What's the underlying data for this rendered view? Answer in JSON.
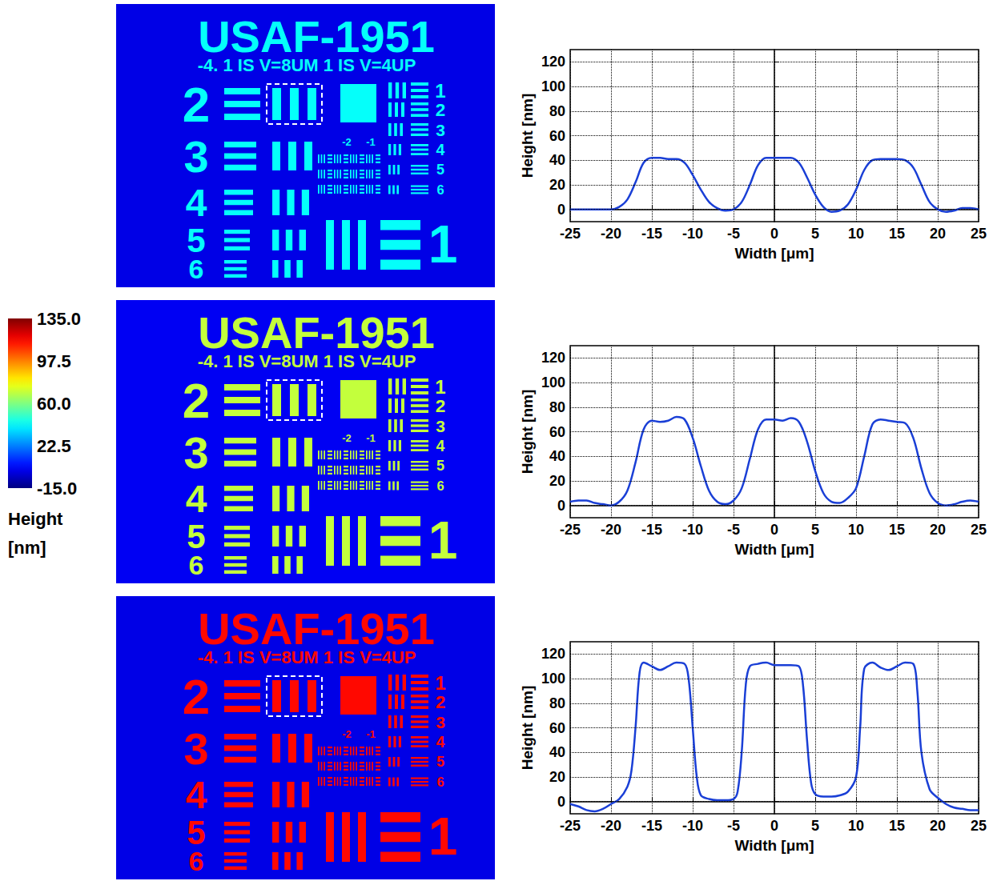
{
  "chart_data": [
    {
      "type": "line",
      "x_label": "Width [μm]",
      "y_label": "Height [nm]",
      "xlim": [
        -25,
        25
      ],
      "xticks": [
        -25,
        -20,
        -15,
        -10,
        -5,
        0,
        5,
        10,
        15,
        20,
        25
      ],
      "ylim": [
        -10,
        130
      ],
      "yticks": [
        0,
        20,
        40,
        60,
        80,
        100,
        120
      ],
      "grid": true,
      "series": [
        {
          "color": "#1a3fd6",
          "line_style": "solid",
          "x": [
            -25,
            -24,
            -23,
            -22,
            -21,
            -20,
            -19,
            -18,
            -17,
            -16,
            -15,
            -14,
            -13,
            -12,
            -11,
            -10,
            -9,
            -8,
            -7,
            -6,
            -5,
            -4,
            -3,
            -2,
            -1,
            0,
            1,
            2,
            3,
            4,
            5,
            6,
            7,
            8,
            9,
            10,
            11,
            12,
            13,
            14,
            15,
            16,
            17,
            18,
            19,
            20,
            21,
            22,
            23,
            24,
            25
          ],
          "values": [
            0,
            0,
            0,
            0,
            0,
            0,
            2,
            8,
            22,
            38,
            42,
            42,
            41,
            41,
            38,
            28,
            16,
            6,
            1,
            -1,
            0,
            6,
            20,
            36,
            42,
            42,
            42,
            42,
            38,
            26,
            12,
            2,
            -2,
            -1,
            4,
            16,
            32,
            40,
            41,
            41,
            41,
            40,
            34,
            20,
            6,
            0,
            -2,
            -1,
            1,
            1,
            0
          ]
        }
      ]
    },
    {
      "type": "line",
      "x_label": "Width [μm]",
      "y_label": "Height [nm]",
      "xlim": [
        -25,
        25
      ],
      "xticks": [
        -25,
        -20,
        -15,
        -10,
        -5,
        0,
        5,
        10,
        15,
        20,
        25
      ],
      "ylim": [
        -10,
        130
      ],
      "yticks": [
        0,
        20,
        40,
        60,
        80,
        100,
        120
      ],
      "grid": true,
      "series": [
        {
          "color": "#1a3fd6",
          "line_style": "solid",
          "x": [
            -25,
            -24,
            -23,
            -22,
            -21,
            -20,
            -19,
            -18,
            -17,
            -16,
            -15,
            -14,
            -13,
            -12,
            -11,
            -10,
            -9,
            -8,
            -7,
            -6,
            -5,
            -4,
            -3,
            -2,
            -1,
            0,
            1,
            2,
            3,
            4,
            5,
            6,
            7,
            8,
            9,
            10,
            11,
            12,
            13,
            14,
            15,
            16,
            17,
            18,
            19,
            20,
            21,
            22,
            23,
            24,
            25
          ],
          "values": [
            3,
            4,
            4,
            2,
            1,
            0,
            3,
            12,
            35,
            62,
            69,
            68,
            69,
            72,
            70,
            55,
            32,
            12,
            3,
            1,
            4,
            14,
            38,
            62,
            70,
            70,
            69,
            71,
            68,
            52,
            28,
            10,
            3,
            2,
            6,
            14,
            40,
            66,
            70,
            69,
            68,
            67,
            55,
            30,
            10,
            2,
            0,
            1,
            3,
            4,
            3
          ]
        }
      ]
    },
    {
      "type": "line",
      "x_label": "Width [μm]",
      "y_label": "Height [nm]",
      "xlim": [
        -25,
        25
      ],
      "xticks": [
        -25,
        -20,
        -15,
        -10,
        -5,
        0,
        5,
        10,
        15,
        20,
        25
      ],
      "ylim": [
        -10,
        130
      ],
      "yticks": [
        0,
        20,
        40,
        60,
        80,
        100,
        120
      ],
      "grid": true,
      "series": [
        {
          "color": "#1a3fd6",
          "line_style": "solid",
          "x": [
            -25,
            -24,
            -23,
            -22,
            -21,
            -20,
            -19,
            -18,
            -17.5,
            -17,
            -16.5,
            -16,
            -15,
            -14,
            -13,
            -12,
            -11,
            -10.5,
            -10,
            -9.5,
            -9,
            -8,
            -7,
            -6,
            -5,
            -4.5,
            -4,
            -3.5,
            -3,
            -2,
            -1,
            0,
            1,
            2,
            3,
            3.5,
            4,
            4.5,
            5,
            6,
            7,
            8,
            9,
            10,
            10.5,
            11,
            12,
            13,
            14,
            15,
            16,
            17,
            17.5,
            18,
            19,
            20,
            21,
            22,
            23,
            24,
            25
          ],
          "values": [
            -2,
            -4,
            -7,
            -8,
            -6,
            -2,
            2,
            12,
            25,
            60,
            105,
            113,
            110,
            107,
            110,
            113,
            112,
            100,
            60,
            20,
            5,
            2,
            1,
            1,
            2,
            8,
            40,
            95,
            110,
            112,
            113,
            111,
            111,
            111,
            110,
            95,
            50,
            15,
            6,
            4,
            4,
            5,
            8,
            20,
            60,
            108,
            113,
            109,
            107,
            110,
            113,
            112,
            90,
            40,
            10,
            3,
            -2,
            -5,
            -6,
            -7,
            -7
          ]
        }
      ]
    }
  ],
  "colorbar": {
    "title": "Height [nm]",
    "range": [
      -15,
      135
    ],
    "ticks": [
      {
        "value": 135,
        "label": "135.0"
      },
      97.5,
      {
        "value": 60,
        "label": "60.0"
      },
      22.5,
      {
        "value": -15,
        "label": "-15.0"
      }
    ]
  },
  "target": {
    "title": "USAF-1951",
    "subtitle": "-4. 1 IS V=8UM 1 IS V=4UP",
    "group_labels": [
      "2",
      "3",
      "4",
      "5",
      "6"
    ],
    "element_labels": [
      "1",
      "2",
      "3",
      "4",
      "5",
      "6"
    ],
    "small_labels": [
      "-2",
      "-1"
    ],
    "corner_label": "1"
  },
  "height_maps": [
    {
      "feature_height": 42,
      "background_height": 0
    },
    {
      "feature_height": 70,
      "background_height": 2
    },
    {
      "feature_height": 115,
      "background_height": 0
    }
  ]
}
